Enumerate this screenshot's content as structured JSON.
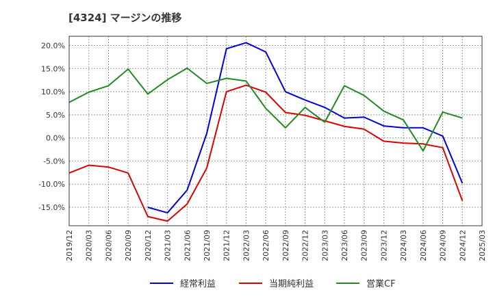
{
  "chart_data": {
    "type": "line",
    "title": "[4324]  マージンの推移",
    "xlabel": "",
    "ylabel": "",
    "x": [
      "2019/12",
      "2020/03",
      "2020/06",
      "2020/09",
      "2020/12",
      "2021/03",
      "2021/06",
      "2021/09",
      "2021/12",
      "2022/03",
      "2022/06",
      "2022/09",
      "2022/12",
      "2023/03",
      "2023/06",
      "2023/09",
      "2023/12",
      "2024/03",
      "2024/06",
      "2024/09",
      "2024/12",
      "2025/03"
    ],
    "ylim": [
      -19,
      22
    ],
    "yticks": [
      20,
      15,
      10,
      5,
      0,
      -5,
      -10,
      -15
    ],
    "ytick_labels": [
      "20.0%",
      "15.0%",
      "10.0%",
      "5.0%",
      "0.0%",
      "-5.0%",
      "-10.0%",
      "-15.0%"
    ],
    "grid": true,
    "legend_position": "bottom",
    "series": [
      {
        "name": "経常利益",
        "color": "#0000dd",
        "values": [
          null,
          null,
          null,
          null,
          -15.0,
          -16.2,
          -11.3,
          1.0,
          19.3,
          20.6,
          18.6,
          10.0,
          8.2,
          6.6,
          4.3,
          4.5,
          2.6,
          2.2,
          2.2,
          0.4,
          -9.8,
          null
        ]
      },
      {
        "name": "当期純利益",
        "color": "#dd0000",
        "values": [
          -7.6,
          -5.9,
          -6.3,
          -7.6,
          -17.0,
          -18.0,
          -14.3,
          -6.5,
          10.0,
          11.4,
          9.9,
          5.5,
          4.9,
          3.7,
          2.5,
          1.9,
          -0.7,
          -1.1,
          -1.3,
          -2.1,
          -13.6,
          null
        ]
      },
      {
        "name": "営業CF",
        "color": "#228822",
        "values": [
          7.7,
          9.9,
          11.3,
          14.9,
          9.5,
          12.6,
          15.1,
          11.8,
          12.9,
          12.3,
          6.4,
          2.2,
          6.6,
          3.4,
          11.3,
          9.2,
          5.8,
          3.9,
          -2.8,
          5.6,
          4.3,
          null
        ]
      }
    ]
  }
}
